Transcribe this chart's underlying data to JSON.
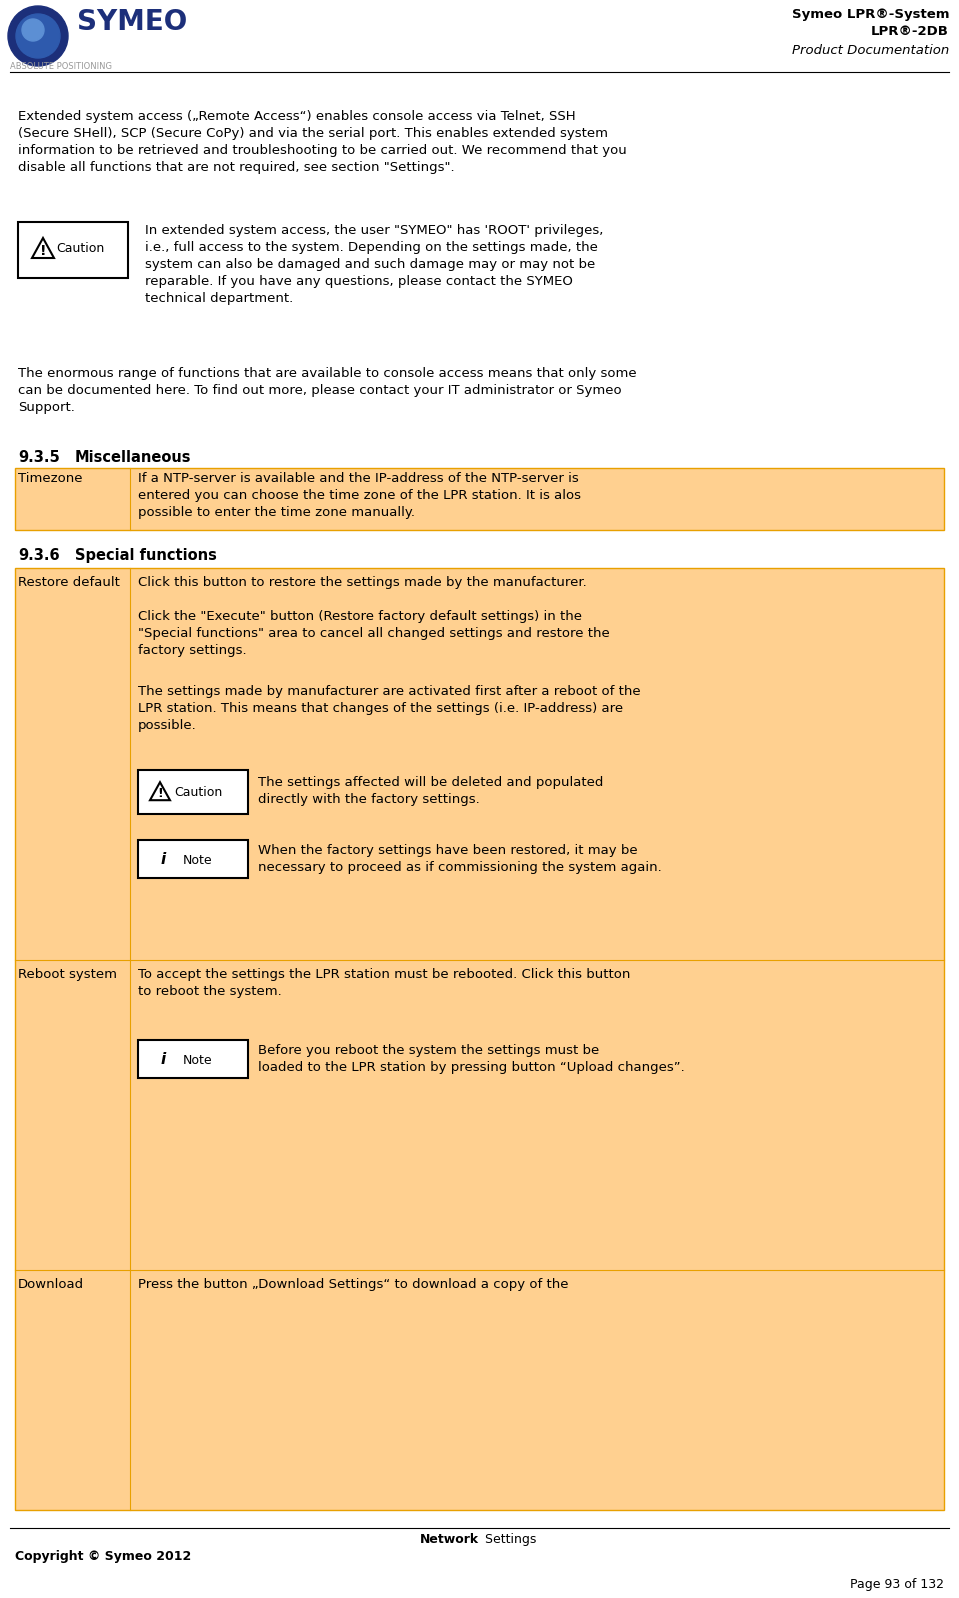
{
  "fig_width": 9.59,
  "fig_height": 15.98,
  "dpi": 100,
  "bg_color": "#ffffff",
  "orange_bg": "#FFD090",
  "orange_border": "#E8A000",
  "header": {
    "title_line1": "Symeo LPR®-System",
    "title_line2": "LPR®-2DB",
    "title_line3": "Product Documentation",
    "logo_sub": "ABSOLUTE POSITIONING"
  },
  "footer": {
    "left_text": "Copyright © Symeo 2012",
    "right_text": "Page 93 of 132"
  },
  "body_text1": "Extended system access („Remote Access“) enables console access via Telnet, SSH\n(Secure SHell), SCP (Secure CoPy) and via the serial port. This enables extended system\ninformation to be retrieved and troubleshooting to be carried out. We recommend that you\ndisable all functions that are not required, see section \"Settings\".",
  "caution_text": "In extended system access, the user \"SYMEO\" has 'ROOT' privileges,\ni.e., full access to the system. Depending on the settings made, the\nsystem can also be damaged and such damage may or may not be\nreparable. If you have any questions, please contact the SYMEO\ntechnical department.",
  "body_text2": "The enormous range of functions that are available to console access means that only some\ncan be documented here. To find out more, please contact your IT administrator or Symeo\nSupport.",
  "timezone_label": "Timezone",
  "timezone_text": "If a NTP-server is available and the IP-address of the NTP-server is\nentered you can choose the time zone of the LPR station. It is alos\npossible to enter the time zone manually.",
  "restore_label": "Restore default",
  "restore_text1": "Click this button to restore the settings made by the manufacturer.",
  "restore_text2": "Click the \"Execute\" button (Restore factory default settings) in the\n\"Special functions\" area to cancel all changed settings and restore the\nfactory settings.",
  "restore_text3": "The settings made by manufacturer are activated first after a reboot of the\nLPR station. This means that changes of the settings (i.e. IP-address) are\npossible.",
  "restore_caution_text": "The settings affected will be deleted and populated\ndirectly with the factory settings.",
  "restore_note_text": "When the factory settings have been restored, it may be\nnecessary to proceed as if commissioning the system again.",
  "reboot_label": "Reboot system",
  "reboot_text1": "To accept the settings the LPR station must be rebooted. Click this button\nto reboot the system.",
  "reboot_note_text": "Before you reboot the system the settings must be\nloaded to the LPR station by pressing button “Upload changes”.",
  "download_label": "Download",
  "download_text": "Press the button „Download Settings“ to download a copy of the"
}
